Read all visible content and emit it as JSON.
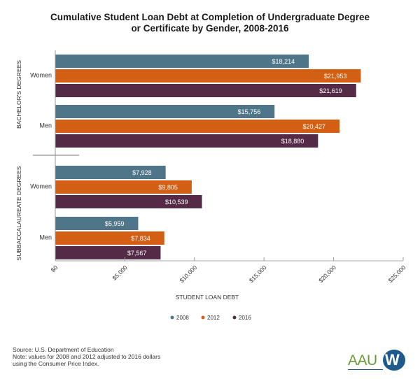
{
  "chart_data": {
    "type": "bar",
    "orientation": "horizontal",
    "title": "Cumulative Student Loan Debt at Completion of Undergraduate Degree or Certificate by Gender, 2008-2016",
    "title_lines": [
      "Cumulative Student Loan Debt at Completion of Undergraduate Degree",
      "or Certificate by Gender, 2008-2016"
    ],
    "xlabel": "STUDENT LOAN DEBT",
    "ylabel": "",
    "xlim": [
      0,
      25000
    ],
    "x_ticks": [
      0,
      5000,
      10000,
      15000,
      20000,
      25000
    ],
    "x_tick_labels": [
      "$0",
      "$5,000",
      "$10,000",
      "$15,000",
      "$20,000",
      "$25,000"
    ],
    "grid": false,
    "legend_position": "bottom-center",
    "groups": [
      {
        "name": "BACHELOR'S DEGREES",
        "categories": [
          "Women",
          "Men"
        ]
      },
      {
        "name": "SUBBACCALAUREATE DEGREES",
        "categories": [
          "Women",
          "Men"
        ]
      }
    ],
    "categories": [
      "Bachelor's Women",
      "Bachelor's Men",
      "Subbaccalaureate Women",
      "Subbaccalaureate Men"
    ],
    "series": [
      {
        "name": "2008",
        "color": "#4f7589",
        "values": [
          18214,
          15756,
          7928,
          5959
        ],
        "labels": [
          "$18,214",
          "$15,756",
          "$7,928",
          "$5,959"
        ]
      },
      {
        "name": "2012",
        "color": "#d35f14",
        "values": [
          21953,
          20427,
          9805,
          7834
        ],
        "labels": [
          "$21,953",
          "$20,427",
          "$9,805",
          "$7,834"
        ]
      },
      {
        "name": "2016",
        "color": "#552a46",
        "values": [
          21619,
          18880,
          10539,
          7567
        ],
        "labels": [
          "$21,619",
          "$18,880",
          "$10,539",
          "$7,567"
        ]
      }
    ]
  },
  "footer": {
    "source": "Source: U.S. Department of Education",
    "note_line1": "Note: values for 2008 and 2012 adjusted to 2016 dollars",
    "note_line2": "using the Consumer Price Index."
  },
  "logo": {
    "text": "AAU",
    "mark": "W"
  }
}
